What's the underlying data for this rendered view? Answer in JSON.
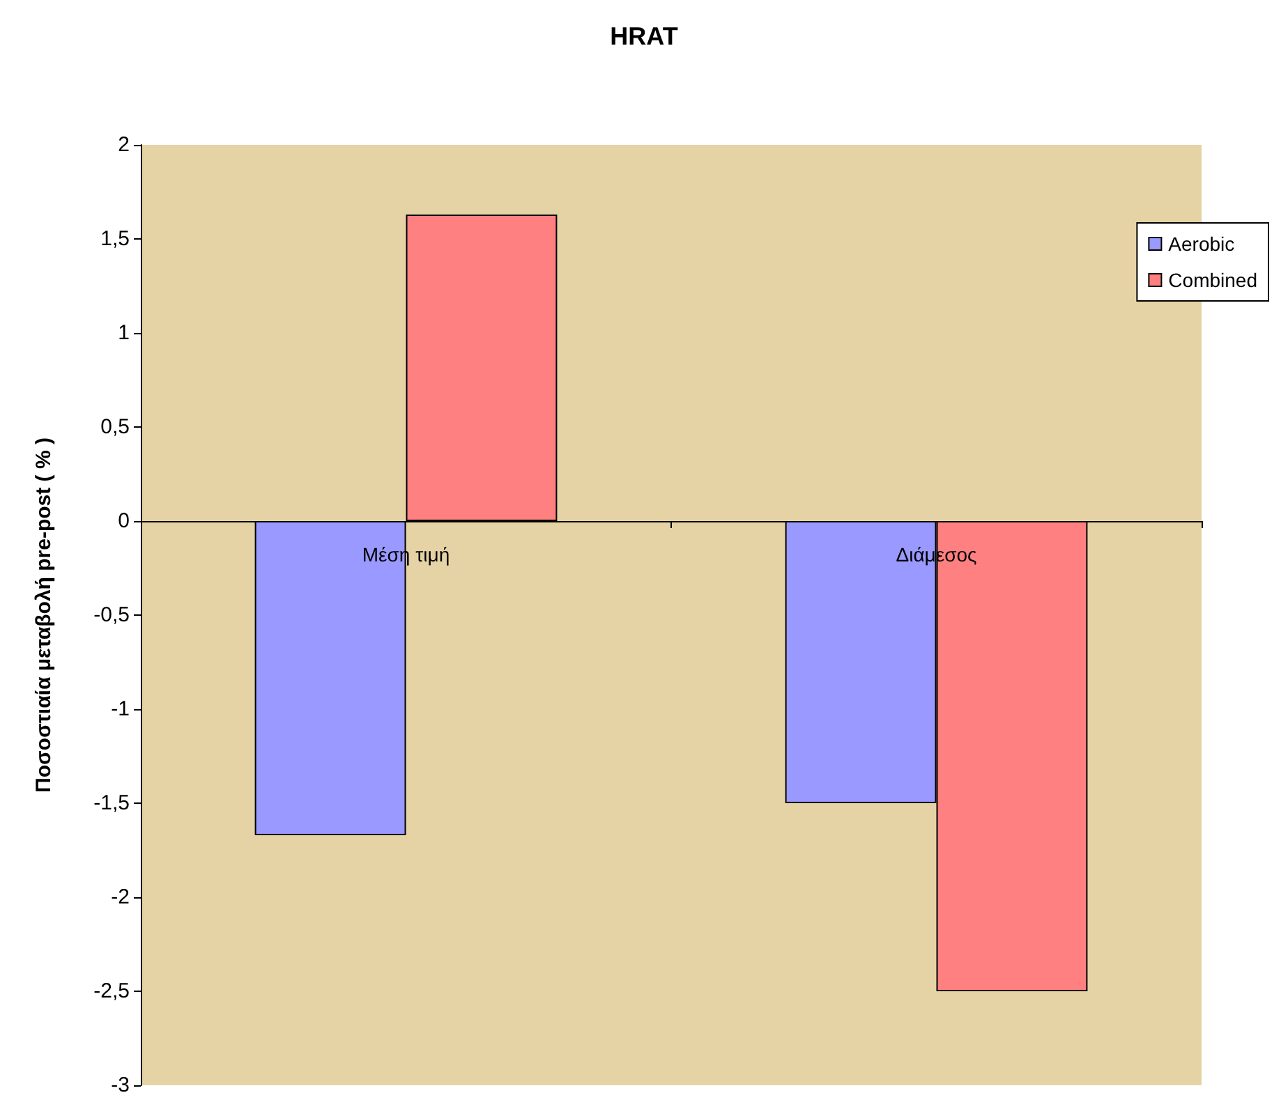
{
  "chart_data": {
    "type": "bar",
    "title": "HRAT",
    "ylabel": "Ποσοστιαία μεταβολή pre-post ( % )",
    "categories": [
      "Μέση τιμή",
      "Διάμεσος"
    ],
    "series": [
      {
        "name": "Aerobic",
        "color": "#9999ff",
        "values": [
          -1.67,
          -1.5
        ]
      },
      {
        "name": "Combined",
        "color": "#ff8080",
        "values": [
          1.63,
          -2.5
        ]
      }
    ],
    "ylim": [
      -3,
      2
    ],
    "yticks": [
      {
        "value": -3,
        "label": "-3"
      },
      {
        "value": -2.5,
        "label": "-2,5"
      },
      {
        "value": -2,
        "label": "-2"
      },
      {
        "value": -1.5,
        "label": "-1,5"
      },
      {
        "value": -1,
        "label": "-1"
      },
      {
        "value": -0.5,
        "label": "-0,5"
      },
      {
        "value": 0,
        "label": "0"
      },
      {
        "value": 0.5,
        "label": "0,5"
      },
      {
        "value": 1,
        "label": "1"
      },
      {
        "value": 1.5,
        "label": "1,5"
      },
      {
        "value": 2,
        "label": "2"
      }
    ],
    "grid": false,
    "legend": "top right"
  }
}
